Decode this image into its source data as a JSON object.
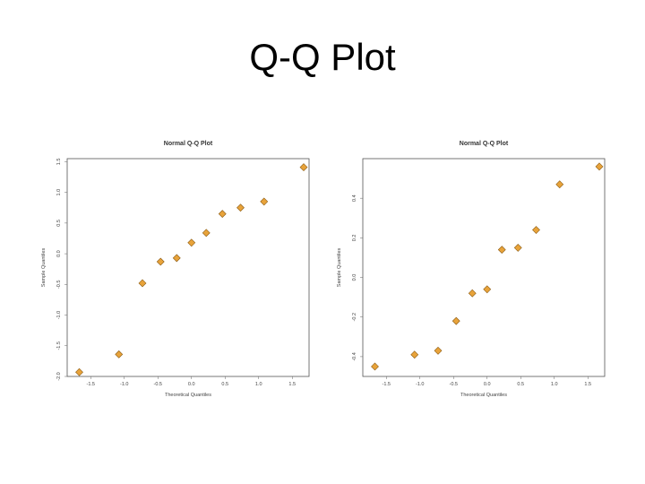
{
  "slide": {
    "title": "Q-Q Plot"
  },
  "colors": {
    "point_fill": "#e8a33a",
    "point_stroke": "#8a5a12",
    "frame": "#555555"
  },
  "chart_data": [
    {
      "type": "scatter",
      "title": "Normal Q-Q Plot",
      "xlabel": "Theoretical Quantiles",
      "ylabel": "Sample Quantiles",
      "xlim": [
        -1.85,
        1.75
      ],
      "ylim": [
        -2.0,
        1.55
      ],
      "xticks": [
        -1.5,
        -1.0,
        -0.5,
        0.0,
        0.5,
        1.0,
        1.5
      ],
      "xtick_labels": [
        "-1.5",
        "-1.0",
        "-0.5",
        "0.0",
        "0.5",
        "1.0",
        "1.5"
      ],
      "yticks": [
        -2.0,
        -1.5,
        -1.0,
        -0.5,
        0.0,
        0.5,
        1.0,
        1.5
      ],
      "ytick_labels": [
        "-2.0",
        "-1.5",
        "-1.0",
        "-0.5",
        "0.0",
        "0.5",
        "1.0",
        "1.5"
      ],
      "grid": false,
      "points": [
        {
          "x": -1.67,
          "y": -1.93
        },
        {
          "x": -1.08,
          "y": -1.64
        },
        {
          "x": -0.73,
          "y": -0.48
        },
        {
          "x": -0.46,
          "y": -0.13
        },
        {
          "x": -0.22,
          "y": -0.07
        },
        {
          "x": 0.0,
          "y": 0.18
        },
        {
          "x": 0.22,
          "y": 0.34
        },
        {
          "x": 0.46,
          "y": 0.65
        },
        {
          "x": 0.73,
          "y": 0.75
        },
        {
          "x": 1.08,
          "y": 0.85
        },
        {
          "x": 1.67,
          "y": 1.41
        }
      ]
    },
    {
      "type": "scatter",
      "title": "Normal Q-Q Plot",
      "xlabel": "Theoretical Quantiles",
      "ylabel": "Sample Quantiles",
      "xlim": [
        -1.85,
        1.75
      ],
      "ylim": [
        -0.5,
        0.6
      ],
      "xticks": [
        -1.5,
        -1.0,
        -0.5,
        0.0,
        0.5,
        1.0,
        1.5
      ],
      "xtick_labels": [
        "-1.5",
        "-1.0",
        "-0.5",
        "0.0",
        "0.5",
        "1.0",
        "1.5"
      ],
      "yticks": [
        -0.4,
        -0.2,
        0.0,
        0.2,
        0.4
      ],
      "ytick_labels": [
        "-0.4",
        "-0.2",
        "0.0",
        "0.2",
        "0.4"
      ],
      "grid": false,
      "points": [
        {
          "x": -1.67,
          "y": -0.45
        },
        {
          "x": -1.08,
          "y": -0.39
        },
        {
          "x": -0.73,
          "y": -0.37
        },
        {
          "x": -0.46,
          "y": -0.22
        },
        {
          "x": -0.22,
          "y": -0.08
        },
        {
          "x": 0.0,
          "y": -0.06
        },
        {
          "x": 0.22,
          "y": 0.14
        },
        {
          "x": 0.46,
          "y": 0.15
        },
        {
          "x": 0.73,
          "y": 0.24
        },
        {
          "x": 1.08,
          "y": 0.47
        },
        {
          "x": 1.67,
          "y": 0.56
        }
      ]
    }
  ]
}
